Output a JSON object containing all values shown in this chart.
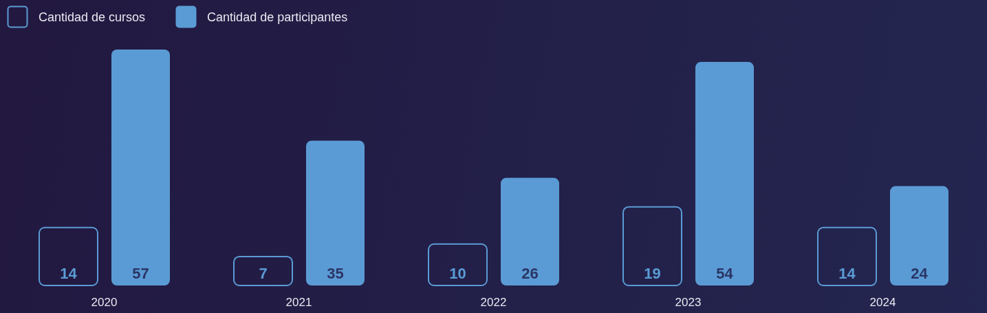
{
  "chart_data": {
    "type": "bar",
    "categories": [
      "2020",
      "2021",
      "2022",
      "2023",
      "2024"
    ],
    "series": [
      {
        "name": "Cantidad de cursos",
        "color": "#5b9bd5",
        "values": [
          14,
          7,
          10,
          19,
          14
        ]
      },
      {
        "name": "Cantidad de participantes",
        "color": "#5b9bd5",
        "values": [
          57,
          35,
          26,
          54,
          24
        ]
      }
    ],
    "data_labels": true,
    "legend": "top left",
    "grid": false
  }
}
